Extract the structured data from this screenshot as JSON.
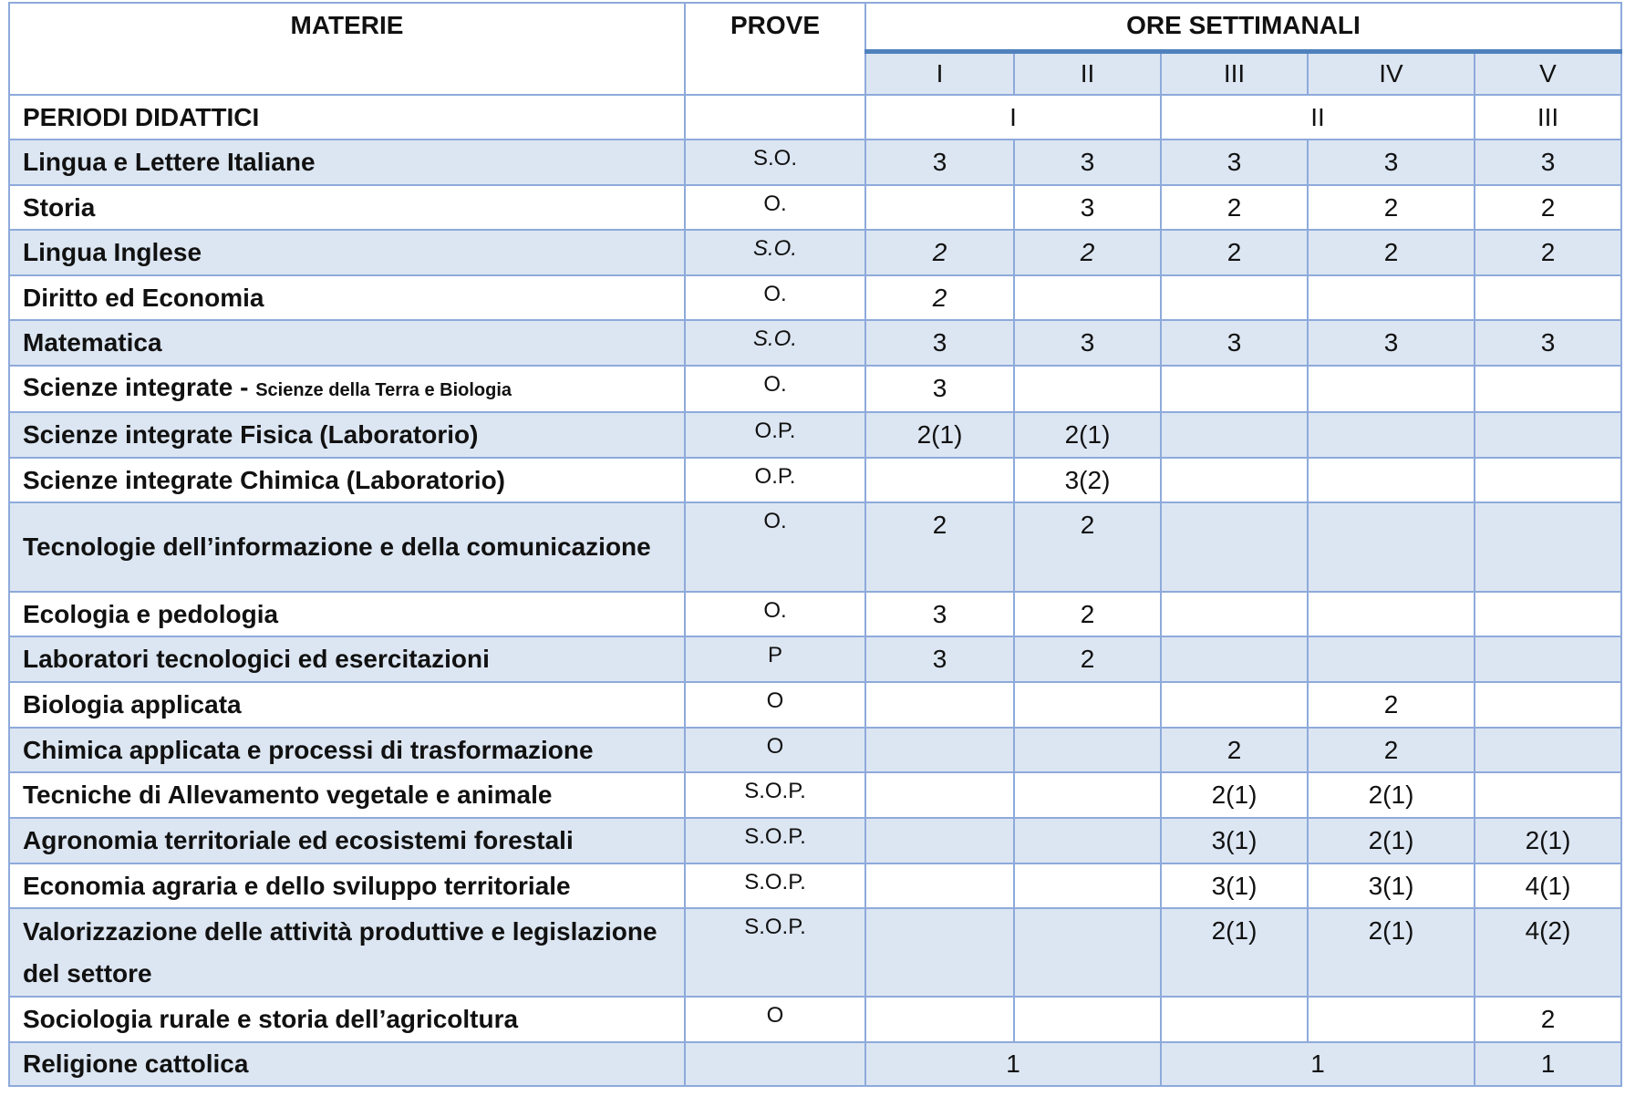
{
  "header": {
    "materie": "MATERIE",
    "prove": "PROVE",
    "ore": "ORE SETTIMANALI",
    "years": [
      "I",
      "II",
      "III",
      "IV",
      "V"
    ]
  },
  "periodi": {
    "label": "PERIODI DIDATTICI",
    "values": [
      "I",
      "II",
      "III"
    ]
  },
  "rows": [
    {
      "subject": "Lingua e Lettere Italiane",
      "prove": "S.O.",
      "hours": [
        "3",
        "3",
        "3",
        "3",
        "3"
      ]
    },
    {
      "subject": "Storia",
      "prove": "O.",
      "hours": [
        "",
        "3",
        "2",
        "2",
        "2"
      ]
    },
    {
      "subject": "Lingua Inglese",
      "prove": "S.O.",
      "hours": [
        "2",
        "2",
        "2",
        "2",
        "2"
      ]
    },
    {
      "subject": "Diritto ed Economia",
      "prove": "O.",
      "hours": [
        "2",
        "",
        "",
        "",
        ""
      ]
    },
    {
      "subject": "Matematica",
      "prove": "S.O.",
      "hours": [
        "3",
        "3",
        "3",
        "3",
        "3"
      ]
    },
    {
      "subject": "Scienze integrate - ",
      "subject_small": "Scienze della Terra e Biologia",
      "prove": "O.",
      "hours": [
        "3",
        "",
        "",
        "",
        ""
      ]
    },
    {
      "subject": "Scienze integrate Fisica (Laboratorio)",
      "prove": "O.P.",
      "hours": [
        "2(1)",
        "2(1)",
        "",
        "",
        ""
      ]
    },
    {
      "subject": "Scienze integrate Chimica (Laboratorio)",
      "prove": "O.P.",
      "hours": [
        "",
        "3(2)",
        "",
        "",
        ""
      ]
    },
    {
      "subject": "Tecnologie dell’informazione e della comunicazione",
      "prove": "O.",
      "hours": [
        "2",
        "2",
        "",
        "",
        ""
      ]
    },
    {
      "subject": "Ecologia e pedologia",
      "prove": "O.",
      "hours": [
        "3",
        "2",
        "",
        "",
        ""
      ]
    },
    {
      "subject": "Laboratori tecnologici ed esercitazioni",
      "prove": "P",
      "hours": [
        "3",
        "2",
        "",
        "",
        ""
      ]
    },
    {
      "subject": "Biologia applicata",
      "prove": "O",
      "hours": [
        "",
        "",
        "",
        "2",
        ""
      ]
    },
    {
      "subject": "Chimica applicata e processi di trasformazione",
      "prove": "O",
      "hours": [
        "",
        "",
        "2",
        "2",
        ""
      ]
    },
    {
      "subject": "Tecniche di Allevamento vegetale e animale",
      "prove": "S.O.P.",
      "hours": [
        "",
        "",
        "2(1)",
        "2(1)",
        ""
      ]
    },
    {
      "subject": "Agronomia territoriale ed ecosistemi forestali",
      "prove": "S.O.P.",
      "hours": [
        "",
        "",
        "3(1)",
        "2(1)",
        "2(1)"
      ]
    },
    {
      "subject": "Economia agraria e dello sviluppo territoriale",
      "prove": "S.O.P.",
      "hours": [
        "",
        "",
        "3(1)",
        "3(1)",
        "4(1)"
      ]
    },
    {
      "subject": "Valorizzazione delle attività produttive e legislazione del settore",
      "prove": "S.O.P.",
      "hours": [
        "",
        "",
        "2(1)",
        "2(1)",
        "4(2)"
      ]
    },
    {
      "subject": "Sociologia rurale e storia dell’agricoltura",
      "prove": "O",
      "hours": [
        "",
        "",
        "",
        "",
        "2"
      ]
    }
  ],
  "religione": {
    "subject": "Religione cattolica",
    "prove": "",
    "values": [
      "1",
      "1",
      "1"
    ]
  },
  "colors": {
    "border": "#8eaadb",
    "shaded_row": "#dce6f2",
    "header_rule": "#4f81bd"
  }
}
